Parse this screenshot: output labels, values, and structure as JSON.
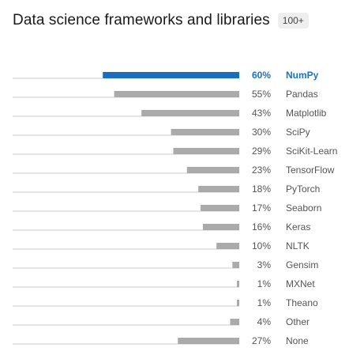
{
  "header": {
    "title": "Data science frameworks and libraries",
    "badge": "100+"
  },
  "colors": {
    "highlight": "#1a6ec0",
    "bar": "#aaaaaa",
    "baseline": "#cccccc"
  },
  "chart_data": {
    "type": "bar",
    "orientation": "horizontal",
    "title": "Data science frameworks and libraries",
    "xlim": [
      0,
      100
    ],
    "highlight_category": "NumPy",
    "categories": [
      "NumPy",
      "Pandas",
      "Matplotlib",
      "SciPy",
      "SciKit-Learn",
      "TensorFlow",
      "PyTorch",
      "Seaborn",
      "Keras",
      "NLTK",
      "Gensim",
      "MXNet",
      "Theano",
      "Other",
      "None"
    ],
    "values": [
      60,
      55,
      43,
      30,
      29,
      23,
      18,
      17,
      16,
      10,
      3,
      1,
      1,
      4,
      27
    ],
    "value_labels": [
      "60%",
      "55%",
      "43%",
      "30%",
      "29%",
      "23%",
      "18%",
      "17%",
      "16%",
      "10%",
      "3%",
      "1%",
      "1%",
      "4%",
      "27%"
    ]
  }
}
